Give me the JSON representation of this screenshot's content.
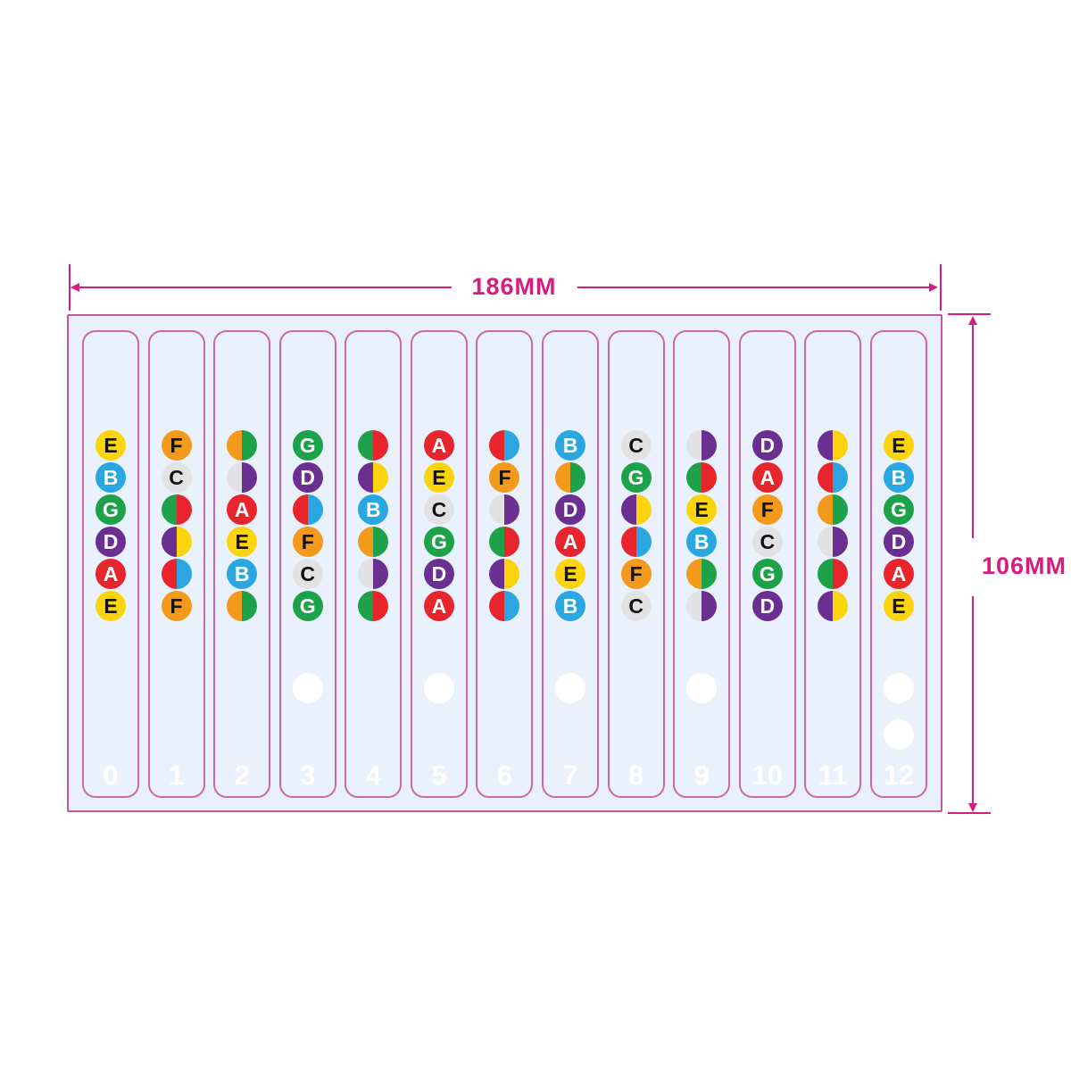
{
  "dimensions": {
    "width_label": "186MM",
    "height_label": "106MM"
  },
  "colors": {
    "accent_magenta": "#d81c7f",
    "board_background": "#e8f1fb",
    "board_border": "#c0589a",
    "column_border": "#ca69a4",
    "marker_dot": "#ffffff",
    "fret_number_text": "#ffffff"
  },
  "palette": {
    "yellow": "#fbd40e",
    "blue": "#2aa7e1",
    "green": "#1da24a",
    "purple": "#6b2e91",
    "red": "#e8242d",
    "orange": "#f39a1b",
    "gray": "#e2e2e4"
  },
  "note_styles": {
    "E": {
      "fill": "yellow",
      "text": "#111111"
    },
    "B": {
      "fill": "blue",
      "text": "#ffffff"
    },
    "G": {
      "fill": "green",
      "text": "#ffffff"
    },
    "D": {
      "fill": "purple",
      "text": "#ffffff"
    },
    "A": {
      "fill": "red",
      "text": "#ffffff"
    },
    "F": {
      "fill": "orange",
      "text": "#111111"
    },
    "C": {
      "fill": "gray",
      "text": "#111111"
    }
  },
  "sharp_splits": {
    "F#": [
      "orange",
      "green"
    ],
    "C#": [
      "gray",
      "purple"
    ],
    "G#": [
      "green",
      "red"
    ],
    "D#": [
      "purple",
      "yellow"
    ],
    "A#": [
      "red",
      "blue"
    ]
  },
  "frets": [
    {
      "number": "0",
      "marker_dots": 0,
      "notes": [
        "E",
        "B",
        "G",
        "D",
        "A",
        "E"
      ]
    },
    {
      "number": "1",
      "marker_dots": 0,
      "notes": [
        "F",
        "C",
        "G#",
        "D#",
        "A#",
        "F"
      ]
    },
    {
      "number": "2",
      "marker_dots": 0,
      "notes": [
        "F#",
        "C#",
        "A",
        "E",
        "B",
        "F#"
      ]
    },
    {
      "number": "3",
      "marker_dots": 1,
      "notes": [
        "G",
        "D",
        "A#",
        "F",
        "C",
        "G"
      ]
    },
    {
      "number": "4",
      "marker_dots": 0,
      "notes": [
        "G#",
        "D#",
        "B",
        "F#",
        "C#",
        "G#"
      ]
    },
    {
      "number": "5",
      "marker_dots": 1,
      "notes": [
        "A",
        "E",
        "C",
        "G",
        "D",
        "A"
      ]
    },
    {
      "number": "6",
      "marker_dots": 0,
      "notes": [
        "A#",
        "F",
        "C#",
        "G#",
        "D#",
        "A#"
      ]
    },
    {
      "number": "7",
      "marker_dots": 1,
      "notes": [
        "B",
        "F#",
        "D",
        "A",
        "E",
        "B"
      ]
    },
    {
      "number": "8",
      "marker_dots": 0,
      "notes": [
        "C",
        "G",
        "D#",
        "A#",
        "F",
        "C"
      ]
    },
    {
      "number": "9",
      "marker_dots": 1,
      "notes": [
        "C#",
        "G#",
        "E",
        "B",
        "F#",
        "C#"
      ]
    },
    {
      "number": "10",
      "marker_dots": 0,
      "notes": [
        "D",
        "A",
        "F",
        "C",
        "G",
        "D"
      ]
    },
    {
      "number": "11",
      "marker_dots": 0,
      "notes": [
        "D#",
        "A#",
        "F#",
        "C#",
        "G#",
        "D#"
      ]
    },
    {
      "number": "12",
      "marker_dots": 2,
      "notes": [
        "E",
        "B",
        "G",
        "D",
        "A",
        "E"
      ]
    }
  ]
}
